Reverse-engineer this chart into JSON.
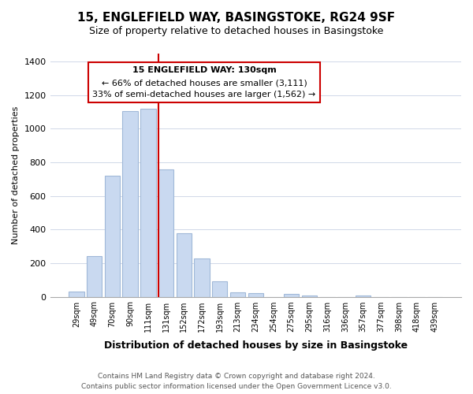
{
  "title": "15, ENGLEFIELD WAY, BASINGSTOKE, RG24 9SF",
  "subtitle": "Size of property relative to detached houses in Basingstoke",
  "xlabel": "Distribution of detached houses by size in Basingstoke",
  "ylabel": "Number of detached properties",
  "footnote1": "Contains HM Land Registry data © Crown copyright and database right 2024.",
  "footnote2": "Contains public sector information licensed under the Open Government Licence v3.0.",
  "bin_labels": [
    "29sqm",
    "49sqm",
    "70sqm",
    "90sqm",
    "111sqm",
    "131sqm",
    "152sqm",
    "172sqm",
    "193sqm",
    "213sqm",
    "234sqm",
    "254sqm",
    "275sqm",
    "295sqm",
    "316sqm",
    "336sqm",
    "357sqm",
    "377sqm",
    "398sqm",
    "418sqm",
    "439sqm"
  ],
  "bar_values": [
    30,
    240,
    720,
    1105,
    1120,
    760,
    380,
    228,
    90,
    28,
    20,
    0,
    18,
    8,
    0,
    0,
    8,
    0,
    0,
    0,
    0
  ],
  "bar_color": "#c9d9f0",
  "bar_edge_color": "#a0b8d8",
  "vline_x_index": 5,
  "vline_color": "#cc0000",
  "ylim": [
    0,
    1450
  ],
  "yticks": [
    0,
    200,
    400,
    600,
    800,
    1000,
    1200,
    1400
  ],
  "annotation_title": "15 ENGLEFIELD WAY: 130sqm",
  "annotation_line1": "← 66% of detached houses are smaller (3,111)",
  "annotation_line2": "33% of semi-detached houses are larger (1,562) →",
  "annotation_box_color": "#ffffff",
  "annotation_border_color": "#cc0000"
}
